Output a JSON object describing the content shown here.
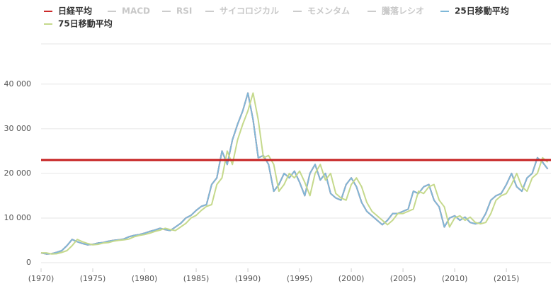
{
  "chart_data": {
    "type": "line",
    "x": [
      1970,
      1970.5,
      1971,
      1971.5,
      1972,
      1972.5,
      1973,
      1973.5,
      1974,
      1974.5,
      1975,
      1975.5,
      1976,
      1976.5,
      1977,
      1977.5,
      1978,
      1978.5,
      1979,
      1979.5,
      1980,
      1980.5,
      1981,
      1981.5,
      1982,
      1982.5,
      1983,
      1983.5,
      1984,
      1984.5,
      1985,
      1985.5,
      1986,
      1986.5,
      1987,
      1987.5,
      1988,
      1988.5,
      1989,
      1989.5,
      1990,
      1990.5,
      1991,
      1991.5,
      1992,
      1992.5,
      1993,
      1993.5,
      1994,
      1994.5,
      1995,
      1995.5,
      1996,
      1996.5,
      1997,
      1997.5,
      1998,
      1998.5,
      1999,
      1999.5,
      2000,
      2000.5,
      2001,
      2001.5,
      2002,
      2002.5,
      2003,
      2003.5,
      2004,
      2004.5,
      2005,
      2005.5,
      2006,
      2006.5,
      2007,
      2007.5,
      2008,
      2008.5,
      2009,
      2009.5,
      2010,
      2010.5,
      2011,
      2011.5,
      2012,
      2012.5,
      2013,
      2013.5,
      2014,
      2014.5,
      2015,
      2015.5,
      2016,
      2016.5,
      2017,
      2017.5,
      2018,
      2018.5,
      2019
    ],
    "series": [
      {
        "name": "日経平均",
        "color": "#cc2a2a",
        "visible": true,
        "values": [
          2200,
          1950,
          2000,
          2300,
          2700,
          3800,
          5200,
          4700,
          4300,
          4000,
          4100,
          4400,
          4500,
          4800,
          5000,
          5100,
          5300,
          5800,
          6100,
          6300,
          6600,
          7000,
          7300,
          7700,
          7400,
          7200,
          8000,
          8800,
          10000,
          10600,
          11700,
          12600,
          13000,
          17500,
          19000,
          25000,
          22000,
          27500,
          31000,
          34000,
          38000,
          32000,
          23500,
          24000,
          22000,
          16000,
          17500,
          20000,
          19000,
          20500,
          18000,
          15000,
          20000,
          22000,
          18500,
          20000,
          15500,
          14500,
          14000,
          17500,
          19000,
          17000,
          13500,
          11500,
          10500,
          9500,
          8500,
          9500,
          11000,
          11000,
          11500,
          12000,
          16000,
          15500,
          17000,
          17500,
          14000,
          12500,
          8000,
          10000,
          10500,
          9500,
          10200,
          9000,
          8700,
          9000,
          11000,
          14000,
          15000,
          15500,
          17500,
          20000,
          17000,
          16000,
          19000,
          20000,
          23500,
          22500,
          21000
        ]
      },
      {
        "name": "MACD",
        "color": "#cccccc",
        "visible": false
      },
      {
        "name": "RSI",
        "color": "#cccccc",
        "visible": false
      },
      {
        "name": "サイコロジカル",
        "color": "#cccccc",
        "visible": false
      },
      {
        "name": "モメンタム",
        "color": "#cccccc",
        "visible": false
      },
      {
        "name": "騰落レシオ",
        "color": "#cccccc",
        "visible": false
      },
      {
        "name": "25日移動平均",
        "color": "#7fb8d8",
        "visible": true,
        "values": [
          2200,
          1950,
          2000,
          2300,
          2700,
          3800,
          5200,
          4700,
          4300,
          4000,
          4100,
          4400,
          4500,
          4800,
          5000,
          5100,
          5300,
          5800,
          6100,
          6300,
          6600,
          7000,
          7300,
          7700,
          7400,
          7200,
          8000,
          8800,
          10000,
          10600,
          11700,
          12600,
          13000,
          17500,
          19000,
          25000,
          22000,
          27500,
          31000,
          34000,
          38000,
          32000,
          23500,
          24000,
          22000,
          16000,
          17500,
          20000,
          19000,
          20500,
          18000,
          15000,
          20000,
          22000,
          18500,
          20000,
          15500,
          14500,
          14000,
          17500,
          19000,
          17000,
          13500,
          11500,
          10500,
          9500,
          8500,
          9500,
          11000,
          11000,
          11500,
          12000,
          16000,
          15500,
          17000,
          17500,
          14000,
          12500,
          8000,
          10000,
          10500,
          9500,
          10200,
          9000,
          8700,
          9000,
          11000,
          14000,
          15000,
          15500,
          17500,
          20000,
          17000,
          16000,
          19000,
          20000,
          23500,
          22500,
          21000
        ]
      },
      {
        "name": "75日移動平均",
        "color": "#c5d98c",
        "visible": true,
        "values": [
          2200,
          2200,
          1950,
          2000,
          2300,
          2700,
          3800,
          5200,
          4700,
          4300,
          4000,
          4100,
          4400,
          4500,
          4800,
          5000,
          5100,
          5300,
          5800,
          6100,
          6300,
          6600,
          7000,
          7300,
          7700,
          7400,
          7200,
          8000,
          8800,
          10000,
          10600,
          11700,
          12600,
          13000,
          17500,
          19000,
          25000,
          22000,
          27500,
          31000,
          34000,
          38000,
          32000,
          23500,
          24000,
          22000,
          16000,
          17500,
          20000,
          19000,
          20500,
          18000,
          15000,
          20000,
          22000,
          18500,
          20000,
          15500,
          14500,
          14000,
          17500,
          19000,
          17000,
          13500,
          11500,
          10500,
          9500,
          8500,
          9500,
          11000,
          11000,
          11500,
          12000,
          16000,
          15500,
          17000,
          17500,
          14000,
          12500,
          8000,
          10000,
          10500,
          9500,
          10200,
          9000,
          8700,
          9000,
          11000,
          14000,
          15000,
          15500,
          17500,
          20000,
          17000,
          16000,
          19000,
          20000,
          23500,
          22500
        ]
      }
    ],
    "reference_line": {
      "value": 23000,
      "color": "#c62020"
    },
    "xlim": [
      1970,
      2019.1
    ],
    "xticks": [
      {
        "value": 1970,
        "label": "(1970)"
      },
      {
        "value": 1975,
        "label": "(1975)"
      },
      {
        "value": 1980,
        "label": "(1980)"
      },
      {
        "value": 1985,
        "label": "(1985)"
      },
      {
        "value": 1990,
        "label": "(1990)"
      },
      {
        "value": 1995,
        "label": "(1995)"
      },
      {
        "value": 2000,
        "label": "(2000)"
      },
      {
        "value": 2005,
        "label": "(2005)"
      },
      {
        "value": 2010,
        "label": "(2010)"
      },
      {
        "value": 2015,
        "label": "(2015)"
      }
    ],
    "ylim": [
      0,
      49000
    ],
    "yticks": [
      0,
      {
        "value": 10000,
        "label": "10 000"
      },
      {
        "value": 20000,
        "label": "20 000"
      },
      {
        "value": 30000,
        "label": "30 000"
      },
      {
        "value": 40000,
        "label": "40 000"
      }
    ],
    "grid": true
  }
}
